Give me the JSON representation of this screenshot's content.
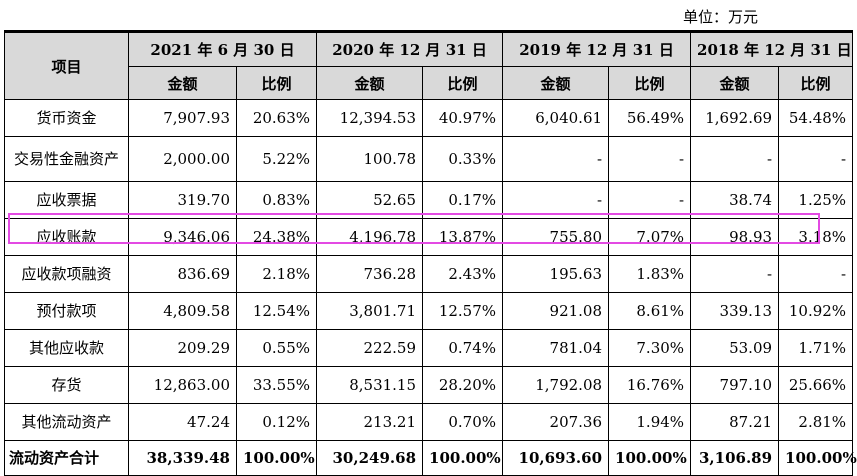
{
  "unit_note": "单位：万元",
  "header": {
    "item": "项目",
    "periods": [
      "2021 年 6 月 30 日",
      "2020 年 12 月 31 日",
      "2019 年 12 月 31 日",
      "2018 年 12 月 31 日"
    ],
    "amount": "金额",
    "ratio": "比例"
  },
  "rows": [
    {
      "name": "货币资金",
      "cells": [
        "7,907.93",
        "20.63%",
        "12,394.53",
        "40.97%",
        "6,040.61",
        "56.49%",
        "1,692.69",
        "54.48%"
      ]
    },
    {
      "name": "交易性金融资产",
      "cells": [
        "2,000.00",
        "5.22%",
        "100.78",
        "0.33%",
        "-",
        "-",
        "-",
        "-"
      ]
    },
    {
      "name": "应收票据",
      "cells": [
        "319.70",
        "0.83%",
        "52.65",
        "0.17%",
        "-",
        "-",
        "38.74",
        "1.25%"
      ]
    },
    {
      "name": "应收账款",
      "cells": [
        "9,346.06",
        "24.38%",
        "4,196.78",
        "13.87%",
        "755.80",
        "7.07%",
        "98.93",
        "3.18%"
      ],
      "highlighted": true
    },
    {
      "name": "应收款项融资",
      "cells": [
        "836.69",
        "2.18%",
        "736.28",
        "2.43%",
        "195.63",
        "1.83%",
        "-",
        "-"
      ]
    },
    {
      "name": "预付款项",
      "cells": [
        "4,809.58",
        "12.54%",
        "3,801.71",
        "12.57%",
        "921.08",
        "8.61%",
        "339.13",
        "10.92%"
      ]
    },
    {
      "name": "其他应收款",
      "cells": [
        "209.29",
        "0.55%",
        "222.59",
        "0.74%",
        "781.04",
        "7.30%",
        "53.09",
        "1.71%"
      ]
    },
    {
      "name": "存货",
      "cells": [
        "12,863.00",
        "33.55%",
        "8,531.15",
        "28.20%",
        "1,792.08",
        "16.76%",
        "797.10",
        "25.66%"
      ]
    },
    {
      "name": "其他流动资产",
      "cells": [
        "47.24",
        "0.12%",
        "213.21",
        "0.70%",
        "207.36",
        "1.94%",
        "87.21",
        "2.81%"
      ]
    },
    {
      "name": "流动资产合计",
      "cells": [
        "38,339.48",
        "100.00%",
        "30,249.68",
        "100.00%",
        "10,693.60",
        "100.00%",
        "3,106.89",
        "100.00%"
      ],
      "total": true
    }
  ],
  "highlight_color": "#e34ae3",
  "header_bg": "#d9d9d9"
}
